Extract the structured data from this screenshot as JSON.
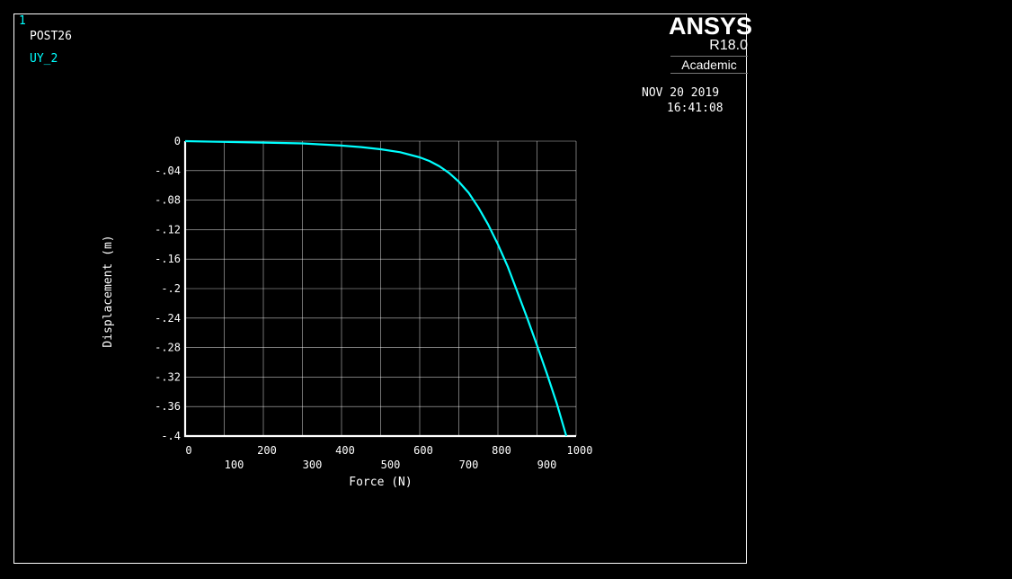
{
  "header": {
    "window_number": "1",
    "module": "POST26",
    "variable": "UY_2"
  },
  "brand": {
    "name": "ANSYS",
    "version": "R18.0",
    "edition": "Academic"
  },
  "timestamp": {
    "date": "NOV 20 2019",
    "time": "16:41:08"
  },
  "colors": {
    "background": "#000000",
    "frame": "#ffffff",
    "curve": "#00ffff",
    "grid": "#ffffff",
    "label": "#ffffff",
    "highlight_text": "#00ffff"
  },
  "chart_data": {
    "type": "line",
    "title": "",
    "xlabel": "Force (N)",
    "ylabel": "Displacement (m)",
    "xlim": [
      0,
      1000
    ],
    "ylim": [
      -0.4,
      0
    ],
    "x_ticks_top_row": [
      "0",
      "200",
      "400",
      "600",
      "800",
      "1000"
    ],
    "x_ticks_bottom_row": [
      "100",
      "300",
      "500",
      "700",
      "900"
    ],
    "x_tick_values": [
      0,
      100,
      200,
      300,
      400,
      500,
      600,
      700,
      800,
      900,
      1000
    ],
    "y_ticks": [
      "0",
      "-.04",
      "-.08",
      "-.12",
      "-.16",
      "-.2",
      "-.24",
      "-.28",
      "-.32",
      "-.36",
      "-.4"
    ],
    "y_tick_values": [
      0,
      -0.04,
      -0.08,
      -0.12,
      -0.16,
      -0.2,
      -0.24,
      -0.28,
      -0.32,
      -0.36,
      -0.4
    ],
    "grid": true,
    "series": [
      {
        "x": [
          0,
          100,
          200,
          300,
          400,
          450,
          500,
          550,
          600,
          625,
          650,
          675,
          700,
          725,
          750,
          775,
          800,
          825,
          850,
          875,
          900,
          925,
          950,
          975
        ],
        "y": [
          0,
          -0.001,
          -0.002,
          -0.003,
          -0.006,
          -0.008,
          -0.011,
          -0.015,
          -0.022,
          -0.027,
          -0.034,
          -0.043,
          -0.055,
          -0.07,
          -0.09,
          -0.113,
          -0.14,
          -0.17,
          -0.205,
          -0.24,
          -0.277,
          -0.315,
          -0.355,
          -0.4
        ]
      }
    ]
  }
}
